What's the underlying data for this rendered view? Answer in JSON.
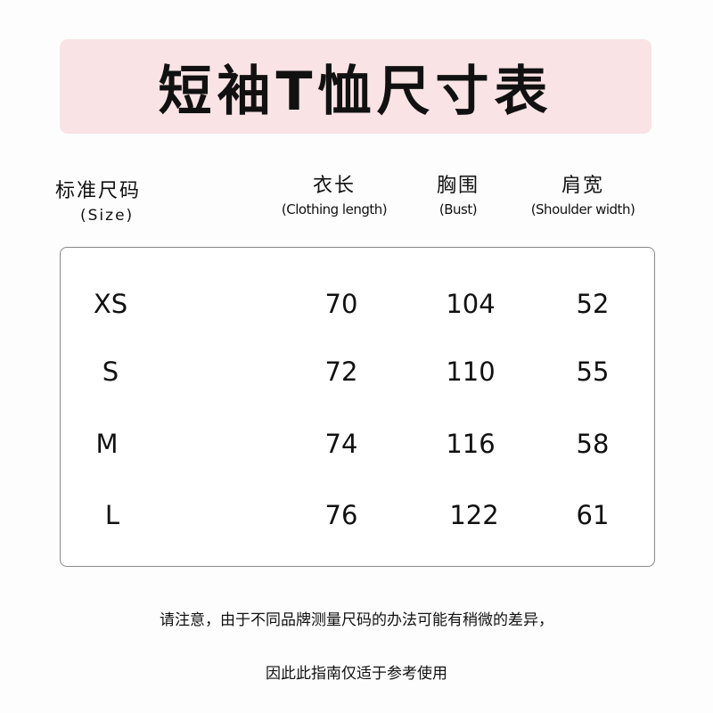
{
  "title": "短袖T恤尺寸表",
  "colors": {
    "title_bg": "#f9e3e4",
    "table_border": "#888888"
  },
  "headers": [
    {
      "cn": "标准尺码",
      "en": "(Size)"
    },
    {
      "cn": "衣长",
      "en": "(Clothing length)"
    },
    {
      "cn": "胸围",
      "en": "(Bust)"
    },
    {
      "cn": "肩宽",
      "en": "(Shoulder width)"
    }
  ],
  "rows": [
    [
      "XS",
      "70",
      "104",
      "52"
    ],
    [
      "S",
      "72",
      "110",
      "55"
    ],
    [
      "M",
      "74",
      "116",
      "58"
    ],
    [
      "L",
      "76",
      "122",
      "61"
    ]
  ],
  "notes": [
    "请注意，由于不同品牌测量尺码的办法可能有稍微的差异，",
    "因此此指南仅适于参考使用"
  ]
}
